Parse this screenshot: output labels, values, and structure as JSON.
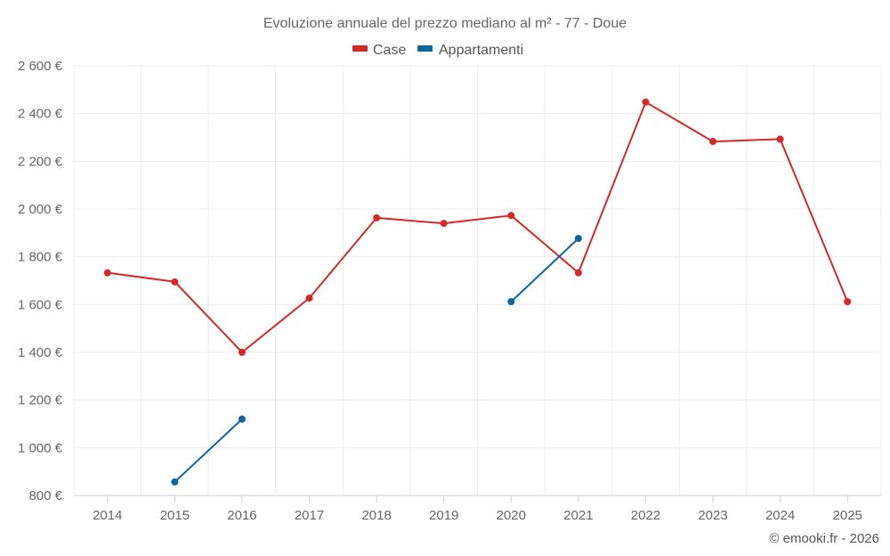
{
  "chart_data": {
    "type": "line",
    "title": "Evoluzione annuale del prezzo mediano al m² - 77 - Doue",
    "categories": [
      "2014",
      "2015",
      "2016",
      "2017",
      "2018",
      "2019",
      "2020",
      "2021",
      "2022",
      "2023",
      "2024",
      "2025"
    ],
    "series": [
      {
        "name": "Case",
        "color": "#d32a27",
        "values": [
          1733,
          1695,
          1400,
          1627,
          1963,
          1940,
          1973,
          1733,
          2448,
          2283,
          2293,
          1612
        ]
      },
      {
        "name": "Appartamenti",
        "color": "#0b65a0",
        "values": [
          null,
          857,
          1120,
          null,
          null,
          null,
          1612,
          1877,
          null,
          null,
          null,
          null
        ]
      }
    ],
    "y_ticks": [
      800,
      1000,
      1200,
      1400,
      1600,
      1800,
      2000,
      2200,
      2400,
      2600
    ],
    "y_tick_labels": [
      "800 €",
      "1 000 €",
      "1 200 €",
      "1 400 €",
      "1 600 €",
      "1 800 €",
      "2 000 €",
      "2 200 €",
      "2 400 €",
      "2 600 €"
    ],
    "ylim": [
      800,
      2600
    ],
    "xlabel": "",
    "ylabel": "",
    "grid": true,
    "legend_position": "top-center",
    "credit": "© emooki.fr - 2026"
  }
}
